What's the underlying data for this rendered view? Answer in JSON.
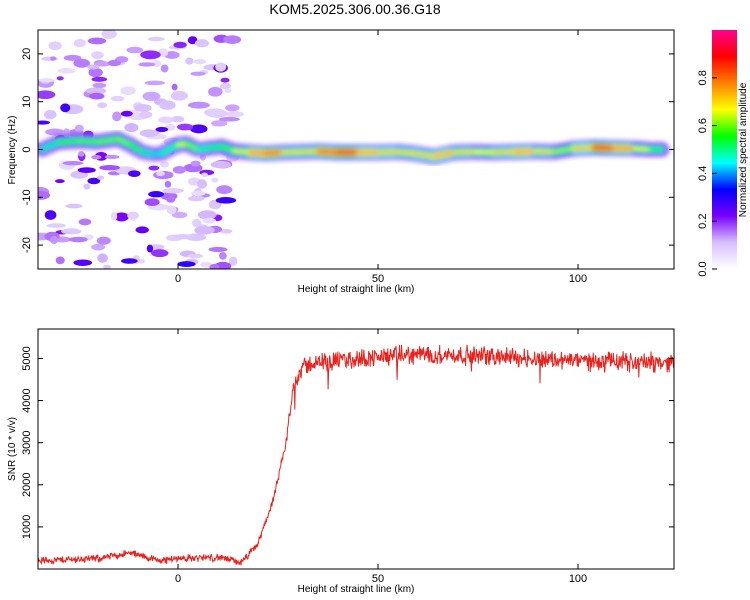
{
  "title": "KOM5.2025.306.00.36.G18",
  "chart_data": [
    {
      "type": "heatmap",
      "xlabel": "Height of straight line (km)",
      "ylabel": "Frequency (Hz)",
      "xlim": [
        -35,
        124
      ],
      "ylim": [
        -25,
        25
      ],
      "x_ticks": [
        "0",
        "50",
        "100"
      ],
      "x_tick_values": [
        0,
        50,
        100
      ],
      "y_ticks": [
        "20",
        "10",
        "0",
        "-10",
        "-20"
      ],
      "y_tick_values": [
        20,
        10,
        0,
        -10,
        -20
      ],
      "colorbar": {
        "label": "Normalized spectral amplitude",
        "range": [
          0,
          1
        ],
        "ticks": [
          "0.0",
          "0.2",
          "0.4",
          "0.6",
          "0.8"
        ],
        "tick_values": [
          0.0,
          0.2,
          0.4,
          0.6,
          0.8
        ],
        "colors": [
          "#ffffff",
          "#d8c0ff",
          "#7a00ff",
          "#0000ff",
          "#00ffff",
          "#00ff00",
          "#ffff00",
          "#ff8000",
          "#ff0000",
          "#ff0090"
        ]
      },
      "ridge": [
        {
          "x": -34,
          "f": 0.0,
          "a": 0.45
        },
        {
          "x": -30,
          "f": 1.5,
          "a": 0.55
        },
        {
          "x": -25,
          "f": 1.8,
          "a": 0.6
        },
        {
          "x": -20,
          "f": 1.6,
          "a": 0.58
        },
        {
          "x": -15,
          "f": 2.2,
          "a": 0.62
        },
        {
          "x": -12,
          "f": 1.0,
          "a": 0.6
        },
        {
          "x": -9,
          "f": -0.5,
          "a": 0.55
        },
        {
          "x": -6,
          "f": -1.0,
          "a": 0.45
        },
        {
          "x": -4,
          "f": -0.8,
          "a": 0.45
        },
        {
          "x": 0,
          "f": 1.0,
          "a": 0.6
        },
        {
          "x": 2,
          "f": 1.2,
          "a": 0.72
        },
        {
          "x": 5,
          "f": 0.0,
          "a": 0.5
        },
        {
          "x": 8,
          "f": 0.3,
          "a": 0.55
        },
        {
          "x": 11,
          "f": 0.6,
          "a": 0.55
        },
        {
          "x": 14,
          "f": -0.3,
          "a": 0.6
        },
        {
          "x": 18,
          "f": -0.6,
          "a": 0.72
        },
        {
          "x": 22,
          "f": -0.8,
          "a": 0.88
        },
        {
          "x": 26,
          "f": -0.6,
          "a": 0.8
        },
        {
          "x": 31,
          "f": -0.5,
          "a": 0.62
        },
        {
          "x": 35,
          "f": -0.4,
          "a": 0.8
        },
        {
          "x": 40,
          "f": -0.6,
          "a": 0.9
        },
        {
          "x": 45,
          "f": -0.6,
          "a": 0.92
        },
        {
          "x": 50,
          "f": -0.6,
          "a": 0.65
        },
        {
          "x": 55,
          "f": -0.5,
          "a": 0.82
        },
        {
          "x": 59,
          "f": -0.8,
          "a": 0.6
        },
        {
          "x": 64,
          "f": -1.5,
          "a": 0.85
        },
        {
          "x": 69,
          "f": -0.6,
          "a": 0.7
        },
        {
          "x": 74,
          "f": -0.5,
          "a": 0.72
        },
        {
          "x": 79,
          "f": -0.6,
          "a": 0.62
        },
        {
          "x": 84,
          "f": -0.5,
          "a": 0.82
        },
        {
          "x": 89,
          "f": -0.4,
          "a": 0.75
        },
        {
          "x": 94,
          "f": -0.5,
          "a": 0.65
        },
        {
          "x": 99,
          "f": 0.2,
          "a": 0.6
        },
        {
          "x": 104,
          "f": 0.4,
          "a": 0.9
        },
        {
          "x": 109,
          "f": 0.3,
          "a": 0.9
        },
        {
          "x": 114,
          "f": 0.2,
          "a": 0.7
        },
        {
          "x": 118,
          "f": 0.0,
          "a": 0.62
        },
        {
          "x": 121,
          "f": 0.0,
          "a": 0.5
        }
      ],
      "noise_x_range": [
        -35,
        15
      ],
      "noise_f_range": [
        -25,
        25
      ]
    },
    {
      "type": "line",
      "xlabel": "Height of straight line (km)",
      "ylabel": "SNR (10 * v/v)",
      "xlim": [
        -35,
        124
      ],
      "ylim": [
        0,
        5700
      ],
      "x_ticks": [
        "0",
        "50",
        "100"
      ],
      "x_tick_values": [
        0,
        50,
        100
      ],
      "y_ticks": [
        "1000",
        "2000",
        "3000",
        "4000",
        "5000"
      ],
      "y_tick_values": [
        1000,
        2000,
        3000,
        4000,
        5000
      ],
      "color": "#e8231e",
      "series_keypoints": [
        {
          "x": -35,
          "y": 200
        },
        {
          "x": -20,
          "y": 250
        },
        {
          "x": -12,
          "y": 380
        },
        {
          "x": -5,
          "y": 200
        },
        {
          "x": 0,
          "y": 250
        },
        {
          "x": 10,
          "y": 280
        },
        {
          "x": 16,
          "y": 150
        },
        {
          "x": 20,
          "y": 600
        },
        {
          "x": 24,
          "y": 1700
        },
        {
          "x": 27,
          "y": 3000
        },
        {
          "x": 29,
          "y": 4400
        },
        {
          "x": 31,
          "y": 4800
        },
        {
          "x": 35,
          "y": 4900
        },
        {
          "x": 45,
          "y": 5000
        },
        {
          "x": 60,
          "y": 5100
        },
        {
          "x": 80,
          "y": 5050
        },
        {
          "x": 100,
          "y": 4950
        },
        {
          "x": 124,
          "y": 4900
        }
      ],
      "noise_amplitude_low": 90,
      "noise_amplitude_high": 230
    }
  ]
}
